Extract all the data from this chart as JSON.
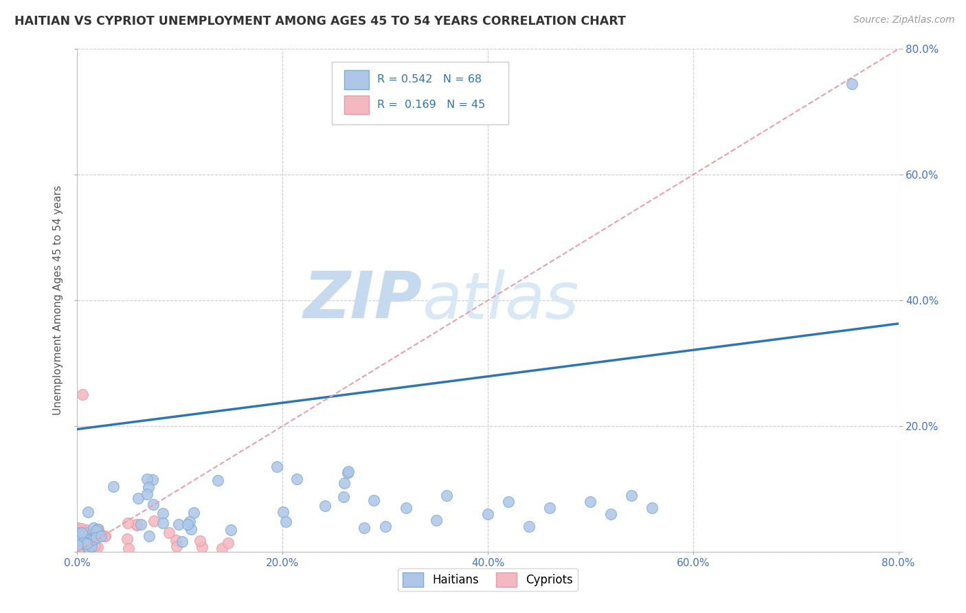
{
  "title": "HAITIAN VS CYPRIOT UNEMPLOYMENT AMONG AGES 45 TO 54 YEARS CORRELATION CHART",
  "source": "Source: ZipAtlas.com",
  "ylabel": "Unemployment Among Ages 45 to 54 years",
  "xlim": [
    0,
    0.8
  ],
  "ylim": [
    0,
    0.8
  ],
  "xtick_vals": [
    0.0,
    0.2,
    0.4,
    0.6,
    0.8
  ],
  "ytick_vals": [
    0.0,
    0.2,
    0.4,
    0.6,
    0.8
  ],
  "xticklabels": [
    "0.0%",
    "20.0%",
    "40.0%",
    "60.0%",
    "80.0%"
  ],
  "yticklabels_right": [
    "",
    "20.0%",
    "40.0%",
    "60.0%",
    "80.0%"
  ],
  "haitian_R": 0.542,
  "haitian_N": 68,
  "cypriot_R": 0.169,
  "cypriot_N": 45,
  "haitian_color": "#aec6e8",
  "cypriot_color": "#f4b8c1",
  "haitian_line_color": "#2e75b6",
  "cypriot_line_color": "#e8a0aa",
  "background_color": "#ffffff",
  "watermark_zip": "ZIP",
  "watermark_atlas": "atlas",
  "watermark_color": "#dce8f5",
  "grid_color": "#cccccc",
  "tick_label_color": "#4472c4",
  "legend_color": "#2e75b6",
  "title_color": "#333333",
  "source_color": "#999999"
}
